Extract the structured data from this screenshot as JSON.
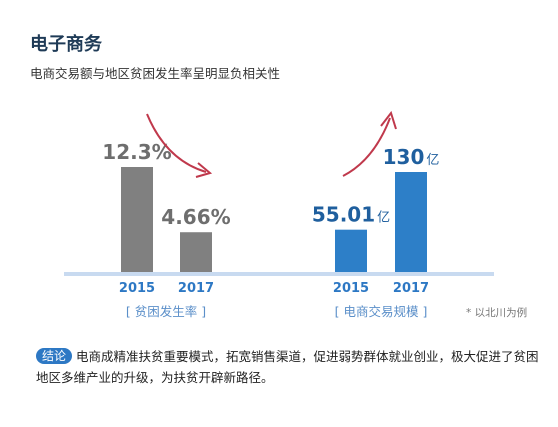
{
  "header": {
    "title": "电子商务",
    "subtitle": "电商交易额与地区贫困发生率呈明显负相关性"
  },
  "footnote": "* 以北川为例",
  "conclusion": {
    "tag": "结论",
    "text": "电商成精准扶贫重要模式，拓宽销售渠道，促进弱势群体就业创业，极大促进了贫困地区多维产业的升级，为扶贫开辟新路径。"
  },
  "chart_data": [
    {
      "type": "bar",
      "title": "贫困发生率",
      "categories": [
        "2015",
        "2017"
      ],
      "values": [
        12.3,
        4.66
      ],
      "value_labels": [
        "12.3%",
        "4.66%"
      ],
      "unit": "%",
      "trend": "down",
      "color": "#808080",
      "label_color": "#6e6e6e"
    },
    {
      "type": "bar",
      "title": "电商交易规模",
      "categories": [
        "2015",
        "2017"
      ],
      "values": [
        55.01,
        130
      ],
      "value_labels": [
        "55.01",
        "130"
      ],
      "unit": "亿",
      "trend": "up",
      "color": "#2d7fc8",
      "label_color": "#1f5f9e"
    }
  ],
  "colors": {
    "axis": "#c8daf0",
    "arrow": "#c0394c",
    "category_text": "#2d78c4",
    "bracket_text": "#5b8fc9"
  }
}
